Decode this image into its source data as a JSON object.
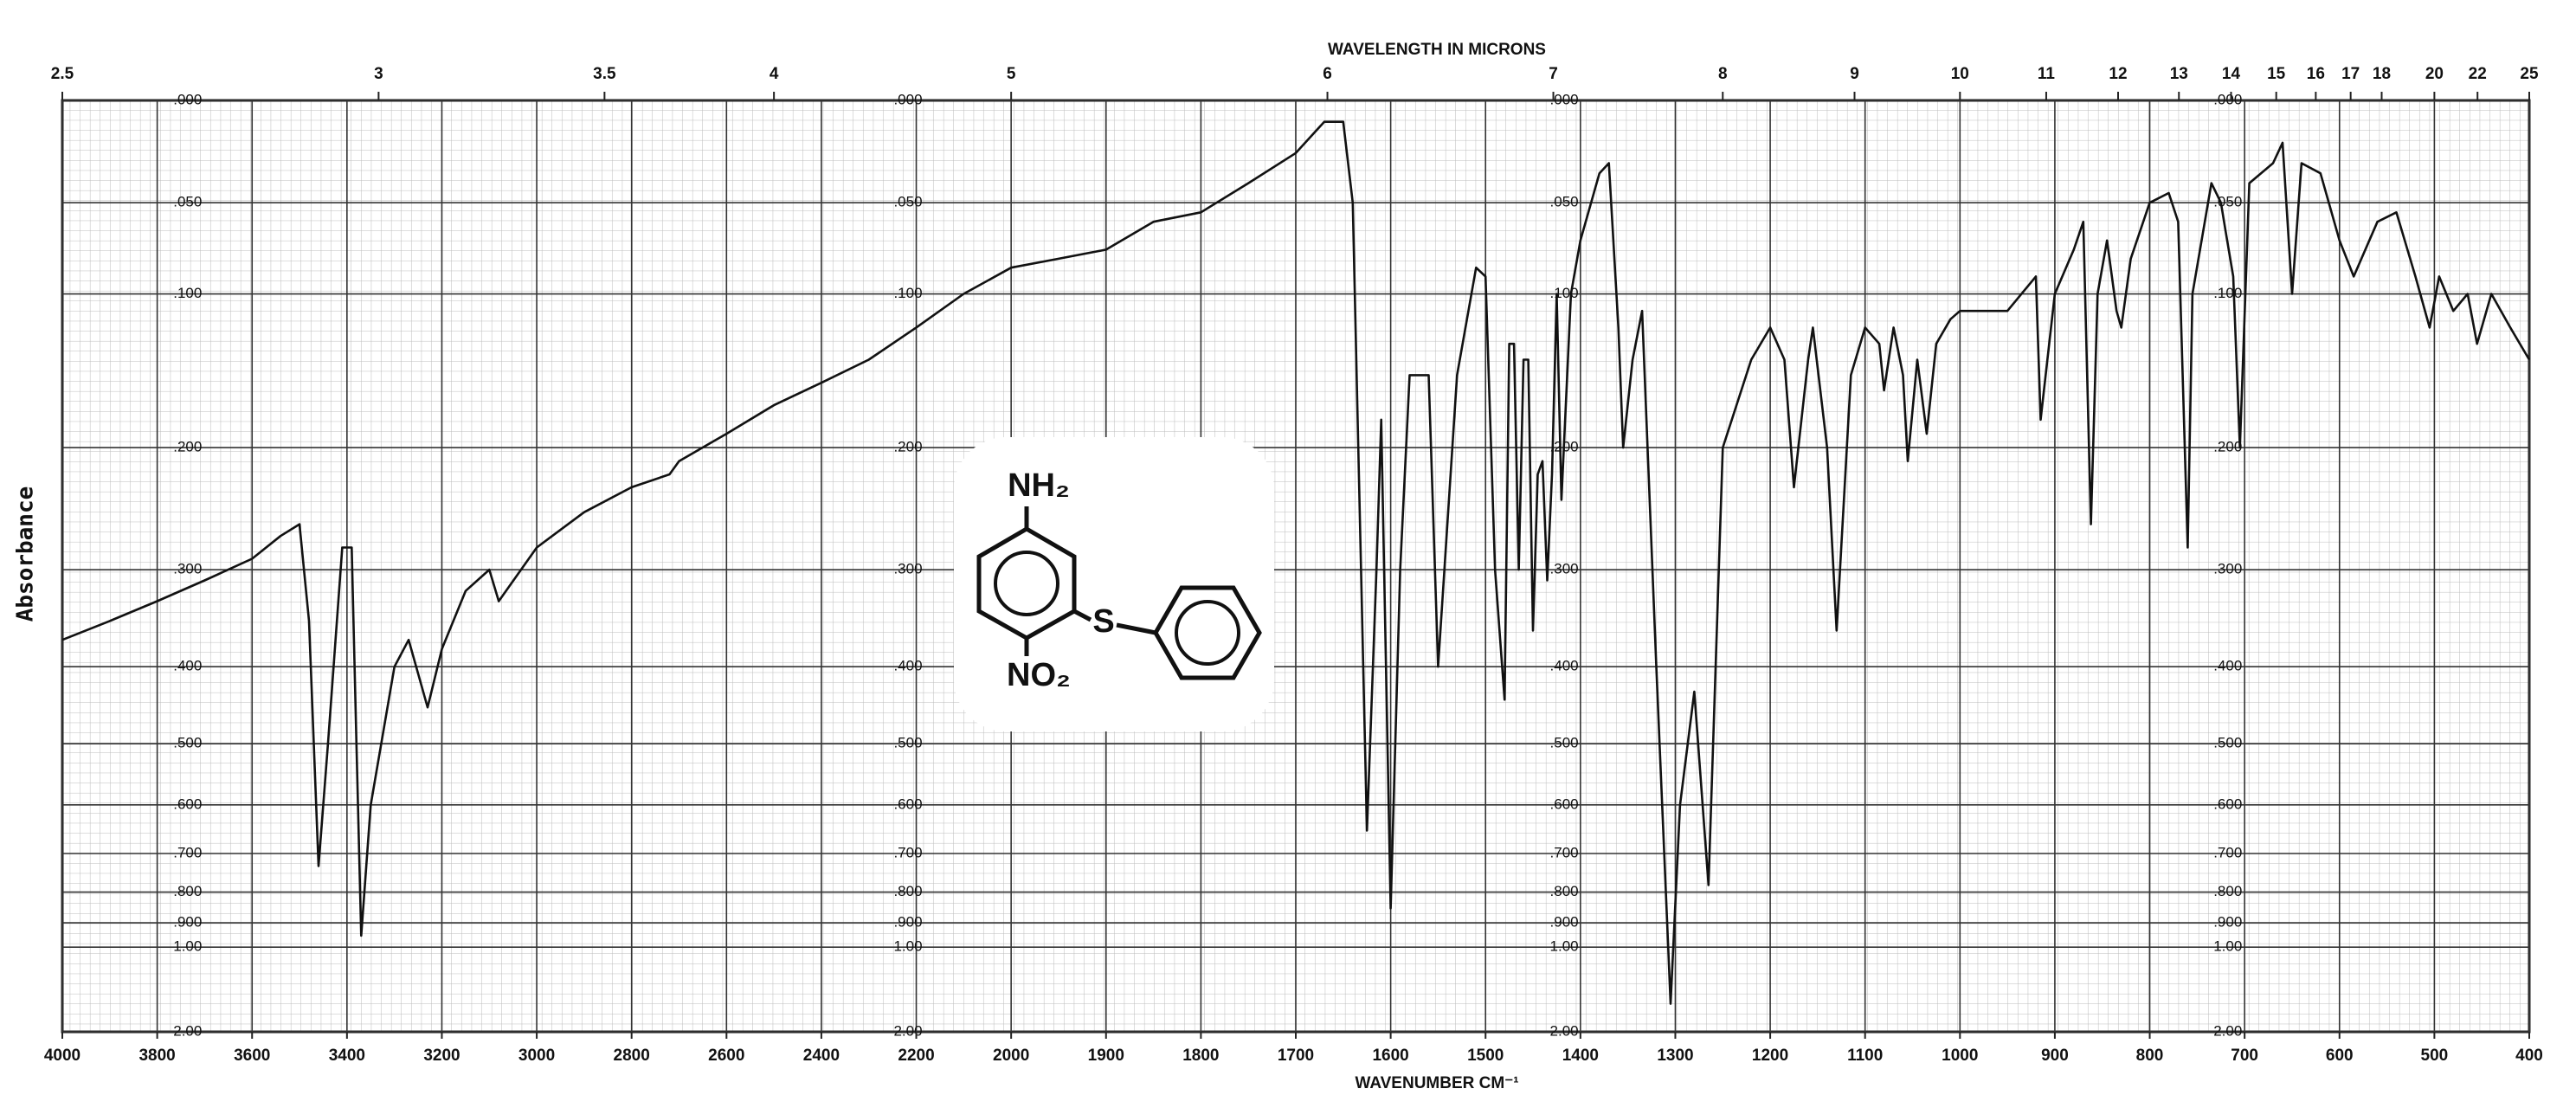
{
  "chart_data": {
    "type": "line",
    "title": "WAVELENGTH IN MICRONS",
    "x_label": "WAVENUMBER CM⁻¹",
    "y_label": "Absorbance",
    "annotations": [
      "NH₂",
      "NO₂",
      "S"
    ],
    "xlim": [
      4000,
      400
    ],
    "x_break": 2000,
    "xticks": [
      4000,
      3800,
      3600,
      3400,
      3200,
      3000,
      2800,
      2600,
      2400,
      2200,
      2000,
      1900,
      1800,
      1700,
      1600,
      1500,
      1400,
      1300,
      1200,
      1100,
      1000,
      900,
      800,
      700,
      600,
      500,
      400
    ],
    "x2ticks": [
      2.5,
      3,
      3.5,
      4,
      5,
      6,
      7,
      8,
      9,
      10,
      11,
      12,
      13,
      14,
      15,
      16,
      17,
      18,
      20,
      22,
      25
    ],
    "ylim": [
      0,
      2
    ],
    "y_scale": "transmittance",
    "yticks": [
      {
        "value": 0,
        "label": ".000"
      },
      {
        "value": 0.05,
        "label": ".050"
      },
      {
        "value": 0.1,
        "label": ".100"
      },
      {
        "value": 0.2,
        "label": ".200"
      },
      {
        "value": 0.3,
        "label": ".300"
      },
      {
        "value": 0.4,
        "label": ".400"
      },
      {
        "value": 0.5,
        "label": ".500"
      },
      {
        "value": 0.6,
        "label": ".600"
      },
      {
        "value": 0.7,
        "label": ".700"
      },
      {
        "value": 0.8,
        "label": ".800"
      },
      {
        "value": 0.9,
        "label": ".900"
      },
      {
        "value": 1,
        "label": "1.00"
      },
      {
        "value": 2,
        "label": "2.00"
      }
    ],
    "grid": true,
    "x": [
      4000,
      3900,
      3800,
      3700,
      3600,
      3540,
      3500,
      3480,
      3460,
      3440,
      3410,
      3390,
      3380,
      3370,
      3350,
      3300,
      3270,
      3230,
      3200,
      3150,
      3100,
      3080,
      3000,
      2900,
      2800,
      2720,
      2700,
      2600,
      2500,
      2400,
      2300,
      2200,
      2100,
      2000,
      1950,
      1900,
      1850,
      1800,
      1750,
      1700,
      1670,
      1650,
      1640,
      1625,
      1615,
      1610,
      1600,
      1590,
      1580,
      1560,
      1550,
      1530,
      1510,
      1500,
      1490,
      1480,
      1475,
      1470,
      1465,
      1460,
      1455,
      1450,
      1445,
      1440,
      1435,
      1430,
      1425,
      1420,
      1410,
      1400,
      1380,
      1370,
      1360,
      1355,
      1345,
      1335,
      1320,
      1305,
      1295,
      1280,
      1265,
      1250,
      1220,
      1200,
      1185,
      1175,
      1160,
      1155,
      1140,
      1130,
      1115,
      1100,
      1085,
      1080,
      1070,
      1060,
      1055,
      1045,
      1035,
      1025,
      1010,
      1000,
      950,
      920,
      915,
      900,
      880,
      870,
      862,
      855,
      845,
      835,
      830,
      820,
      800,
      780,
      770,
      760,
      755,
      735,
      725,
      720,
      712,
      705,
      695,
      670,
      660,
      650,
      640,
      620,
      600,
      585,
      560,
      540,
      520,
      505,
      495,
      480,
      465,
      455,
      440,
      420,
      400
    ],
    "series": [
      {
        "name": "Absorbance",
        "color": "#111111",
        "values": [
          0.37,
          0.35,
          0.33,
          0.31,
          0.29,
          0.27,
          0.26,
          0.35,
          0.73,
          0.5,
          0.28,
          0.28,
          0.5,
          0.95,
          0.6,
          0.4,
          0.37,
          0.45,
          0.38,
          0.32,
          0.3,
          0.33,
          0.28,
          0.25,
          0.23,
          0.22,
          0.21,
          0.19,
          0.17,
          0.155,
          0.14,
          0.12,
          0.1,
          0.085,
          0.08,
          0.075,
          0.06,
          0.055,
          0.04,
          0.025,
          0.01,
          0.01,
          0.05,
          0.65,
          0.3,
          0.18,
          0.85,
          0.3,
          0.15,
          0.15,
          0.4,
          0.15,
          0.085,
          0.09,
          0.3,
          0.44,
          0.13,
          0.13,
          0.3,
          0.14,
          0.14,
          0.36,
          0.22,
          0.21,
          0.31,
          0.22,
          0.1,
          0.24,
          0.1,
          0.07,
          0.035,
          0.03,
          0.12,
          0.2,
          0.14,
          0.11,
          0.4,
          1.4,
          0.6,
          0.43,
          0.78,
          0.2,
          0.14,
          0.12,
          0.14,
          0.23,
          0.14,
          0.12,
          0.2,
          0.36,
          0.15,
          0.12,
          0.13,
          0.16,
          0.12,
          0.15,
          0.21,
          0.14,
          0.19,
          0.13,
          0.115,
          0.11,
          0.11,
          0.09,
          0.18,
          0.1,
          0.075,
          0.06,
          0.26,
          0.1,
          0.07,
          0.11,
          0.12,
          0.08,
          0.05,
          0.045,
          0.06,
          0.28,
          0.1,
          0.04,
          0.05,
          0.065,
          0.09,
          0.2,
          0.04,
          0.03,
          0.02,
          0.1,
          0.03,
          0.035,
          0.07,
          0.09,
          0.06,
          0.055,
          0.09,
          0.12,
          0.09,
          0.11,
          0.1,
          0.13,
          0.1,
          0.12,
          0.14
        ]
      }
    ]
  }
}
